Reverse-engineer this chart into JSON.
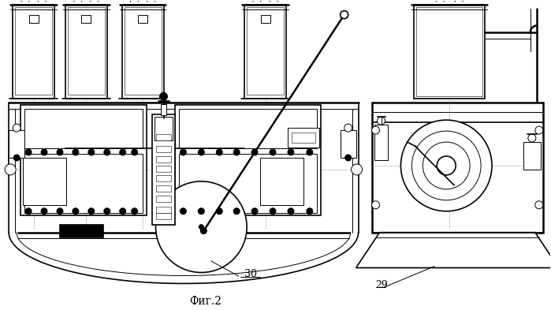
{
  "fig_label": "Фиг.2",
  "label_30": "30",
  "label_29": "29",
  "bg_color": "#ffffff",
  "line_color": "#000000",
  "fig_width": 6.99,
  "fig_height": 3.93,
  "dpi": 100
}
